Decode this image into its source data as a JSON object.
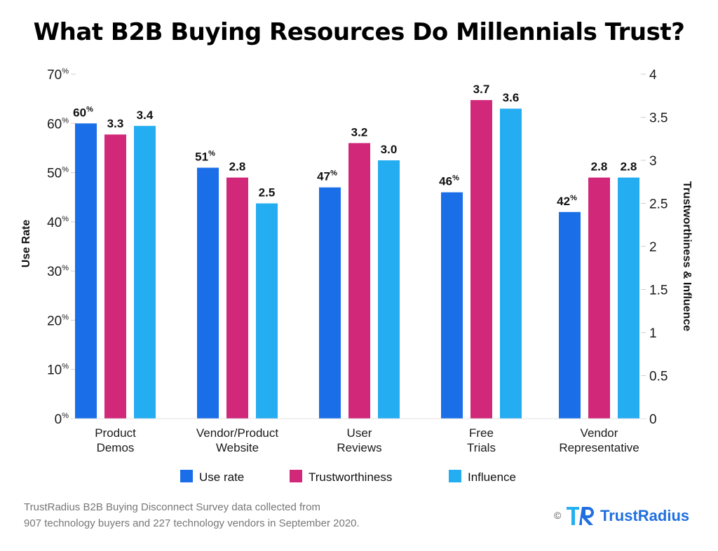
{
  "chart_data": {
    "type": "bar",
    "title": "What B2B Buying Resources Do Millennials Trust?",
    "categories": [
      [
        "Product",
        "Demos"
      ],
      [
        "Vendor/Product",
        "Website"
      ],
      [
        "User",
        "Reviews"
      ],
      [
        "Free",
        "Trials"
      ],
      [
        "Vendor",
        "Representative"
      ]
    ],
    "series": [
      {
        "name": "Use rate",
        "axis": "left",
        "color": "#1a6fe8",
        "values": [
          60,
          51,
          47,
          46,
          42
        ],
        "labels": [
          "60",
          "51",
          "47",
          "46",
          "42"
        ],
        "label_suffix": "%"
      },
      {
        "name": "Trustworthiness",
        "axis": "right",
        "color": "#d1287a",
        "values": [
          3.3,
          2.8,
          3.2,
          3.7,
          2.8
        ],
        "labels": [
          "3.3",
          "2.8",
          "3.2",
          "3.7",
          "2.8"
        ],
        "label_suffix": ""
      },
      {
        "name": "Influence",
        "axis": "right",
        "color": "#25adf2",
        "values": [
          3.4,
          2.5,
          3.0,
          3.6,
          2.8
        ],
        "labels": [
          "3.4",
          "2.5",
          "3.0",
          "3.6",
          "2.8"
        ],
        "label_suffix": ""
      }
    ],
    "y_left": {
      "label": "Use Rate",
      "ylim": [
        0,
        70
      ],
      "ticks": [
        0,
        10,
        20,
        30,
        40,
        50,
        60,
        70
      ],
      "tick_suffix": "%"
    },
    "y_right": {
      "label": "Trustworthiness & Influence",
      "ylim": [
        0,
        4
      ],
      "ticks": [
        "0",
        "0.5",
        "1",
        "1.5",
        "2",
        "2.5",
        "3",
        "3.5",
        "4"
      ]
    },
    "grid": false,
    "legend_position": "bottom"
  },
  "footnote": [
    "TrustRadius B2B Buying Disconnect Survey data collected from",
    "907 technology buyers and 227 technology vendors in September 2020."
  ],
  "brand": {
    "copyright": "©",
    "name": "TrustRadius"
  }
}
